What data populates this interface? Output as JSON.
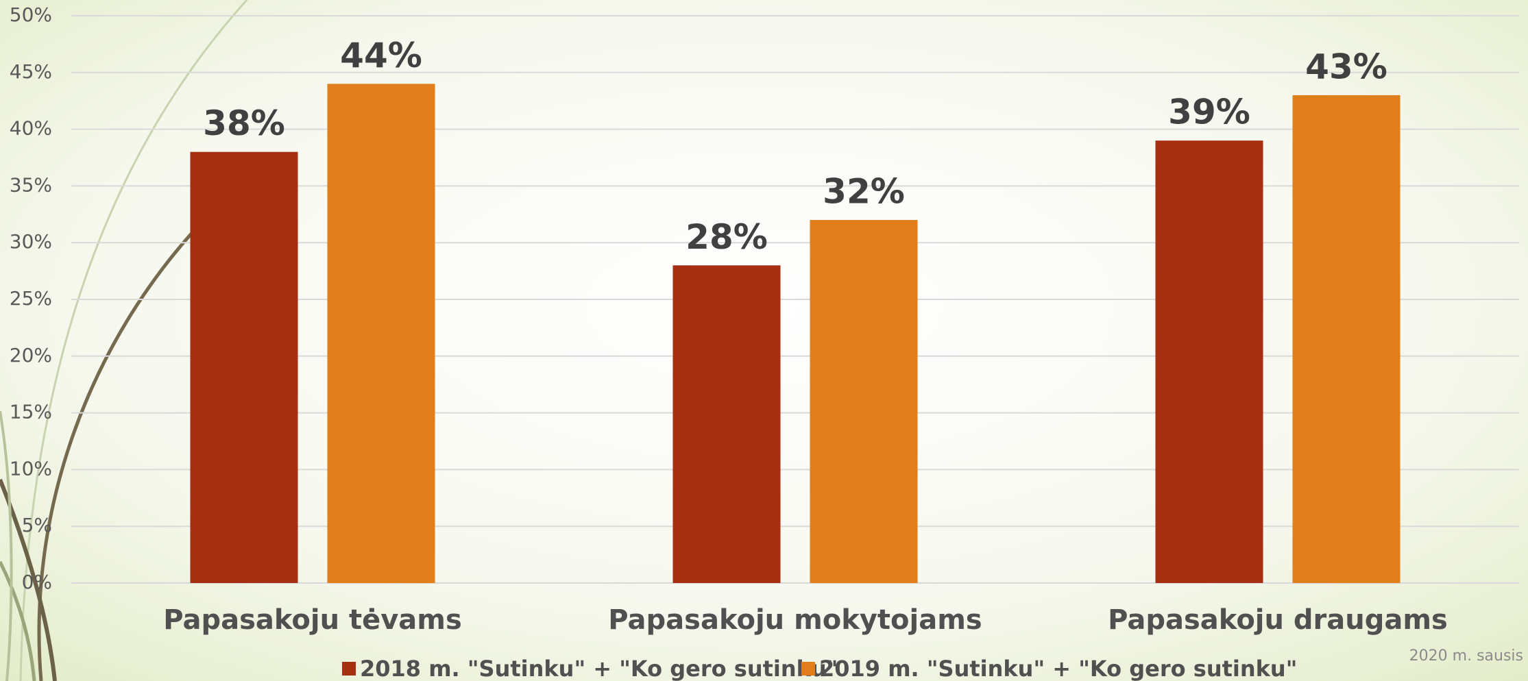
{
  "chart_data": {
    "type": "bar",
    "categories": [
      "Papasakoju tėvams",
      "Papasakoju mokytojams",
      "Papasakoju draugams"
    ],
    "series": [
      {
        "name": "2018 m. \"Sutinku\" + \"Ko gero sutinku\"",
        "color": "#a52f10",
        "values": [
          38,
          28,
          39
        ],
        "value_labels": [
          "38%",
          "28%",
          "39%"
        ]
      },
      {
        "name": "2019 m. \"Sutinku\" + \"Ko gero sutinku\"",
        "color": "#df7e1a",
        "values": [
          44,
          32,
          43
        ],
        "value_labels": [
          "44%",
          "32%",
          "43%"
        ]
      }
    ],
    "ylim": [
      0,
      50
    ],
    "yticks": [
      {
        "value": 0,
        "label": "0%"
      },
      {
        "value": 5,
        "label": "5%"
      },
      {
        "value": 10,
        "label": "10%"
      },
      {
        "value": 15,
        "label": "15%"
      },
      {
        "value": 20,
        "label": "20%"
      },
      {
        "value": 25,
        "label": "25%"
      },
      {
        "value": 30,
        "label": "30%"
      },
      {
        "value": 35,
        "label": "35%"
      },
      {
        "value": 40,
        "label": "40%"
      },
      {
        "value": 45,
        "label": "45%"
      },
      {
        "value": 50,
        "label": "50%"
      }
    ],
    "grid": true,
    "legend": "bottom",
    "footnote": "2020 m. sausis"
  }
}
